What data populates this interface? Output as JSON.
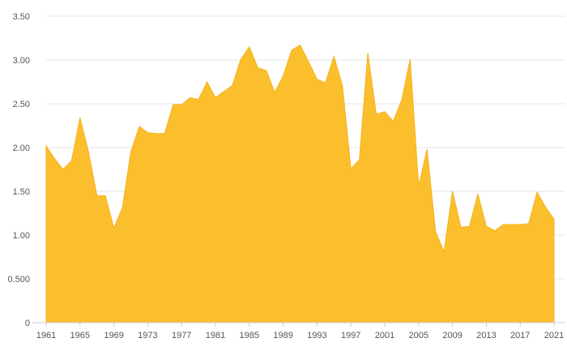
{
  "chart_data": {
    "type": "area",
    "title": "",
    "xlabel": "",
    "ylabel": "",
    "x": [
      1961,
      1962,
      1963,
      1964,
      1965,
      1966,
      1967,
      1968,
      1969,
      1970,
      1971,
      1972,
      1973,
      1974,
      1975,
      1976,
      1977,
      1978,
      1979,
      1980,
      1981,
      1982,
      1983,
      1984,
      1985,
      1986,
      1987,
      1988,
      1989,
      1990,
      1991,
      1992,
      1993,
      1994,
      1995,
      1996,
      1997,
      1998,
      1999,
      2000,
      2001,
      2002,
      2003,
      2004,
      2005,
      2006,
      2007,
      2008,
      2009,
      2010,
      2011,
      2012,
      2013,
      2014,
      2015,
      2016,
      2017,
      2018,
      2019,
      2020,
      2021
    ],
    "series": [
      {
        "values": [
          2.02,
          1.87,
          1.75,
          1.85,
          2.34,
          1.95,
          1.45,
          1.45,
          1.08,
          1.31,
          1.95,
          2.24,
          2.17,
          2.16,
          2.16,
          2.49,
          2.49,
          2.57,
          2.55,
          2.75,
          2.57,
          2.64,
          2.71,
          3.01,
          3.15,
          2.91,
          2.88,
          2.63,
          2.82,
          3.11,
          3.17,
          2.98,
          2.78,
          2.74,
          3.04,
          2.71,
          1.76,
          1.86,
          3.08,
          2.38,
          2.41,
          2.3,
          2.54,
          3.01,
          1.56,
          1.98,
          1.04,
          0.81,
          1.5,
          1.09,
          1.1,
          1.47,
          1.1,
          1.05,
          1.12,
          1.12,
          1.12,
          1.13,
          1.49,
          1.32,
          1.18
        ],
        "color": "#fbbf2e"
      }
    ],
    "xticks": [
      "1961",
      "1965",
      "1969",
      "1973",
      "1977",
      "1981",
      "1985",
      "1989",
      "1993",
      "1997",
      "2001",
      "2005",
      "2009",
      "2013",
      "2017",
      "2021"
    ],
    "yticks": [
      "0",
      "0.500",
      "1.00",
      "1.50",
      "2.00",
      "2.50",
      "3.00",
      "3.50"
    ],
    "ylim": [
      0,
      3.5
    ],
    "xlim": [
      1961,
      2021
    ],
    "grid": true,
    "legend": "none"
  }
}
